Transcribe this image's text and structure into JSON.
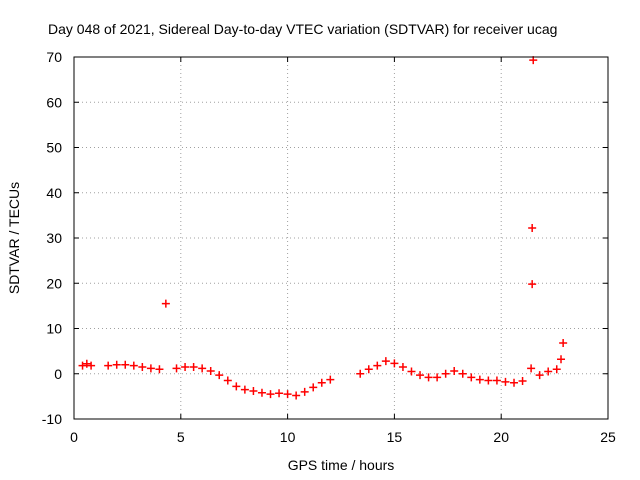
{
  "chart_data": {
    "type": "scatter",
    "title": "Day 048 of 2021, Sidereal Day-to-day VTEC variation (SDTVAR) for receiver ucag",
    "xlabel": "GPS time / hours",
    "ylabel": "SDTVAR / TECUs",
    "xlim": [
      0,
      25
    ],
    "ylim": [
      -10,
      70
    ],
    "xticks": [
      "0",
      "5",
      "10",
      "15",
      "20",
      "25"
    ],
    "yticks": [
      "-10",
      "0",
      "10",
      "20",
      "30",
      "40",
      "50",
      "60",
      "70"
    ],
    "grid": true,
    "marker": "plus",
    "color": "#ff0000",
    "series": [
      {
        "name": "SDTVAR",
        "x": [
          0.4,
          0.6,
          0.8,
          1.6,
          2.0,
          2.4,
          2.8,
          3.2,
          3.6,
          4.0,
          4.3,
          4.8,
          5.2,
          5.6,
          6.0,
          6.4,
          6.8,
          7.2,
          7.6,
          8.0,
          8.4,
          8.8,
          9.2,
          9.6,
          10.0,
          10.4,
          10.8,
          11.2,
          11.6,
          12.0,
          13.4,
          13.8,
          14.2,
          14.6,
          15.0,
          15.4,
          15.8,
          16.2,
          16.6,
          17.0,
          17.4,
          17.8,
          18.2,
          18.6,
          19.0,
          19.4,
          19.8,
          20.2,
          20.6,
          21.0,
          21.4,
          21.45,
          21.5,
          21.45,
          21.8,
          22.2,
          22.6,
          22.8,
          22.9
        ],
        "y": [
          1.8,
          2.2,
          1.8,
          1.8,
          2.0,
          2.0,
          1.8,
          1.5,
          1.2,
          1.0,
          15.5,
          1.2,
          1.5,
          1.5,
          1.2,
          0.6,
          -0.3,
          -1.5,
          -2.8,
          -3.5,
          -3.8,
          -4.2,
          -4.5,
          -4.3,
          -4.5,
          -4.8,
          -4.0,
          -3.0,
          -2.0,
          -1.3,
          0.0,
          1.0,
          1.8,
          2.8,
          2.3,
          1.5,
          0.5,
          -0.3,
          -0.8,
          -0.8,
          0.0,
          0.6,
          0.0,
          -0.8,
          -1.3,
          -1.5,
          -1.5,
          -1.8,
          -2.0,
          -1.6,
          1.2,
          32.2,
          69.3,
          19.8,
          -0.3,
          0.5,
          1.0,
          3.2,
          6.8
        ]
      }
    ]
  }
}
